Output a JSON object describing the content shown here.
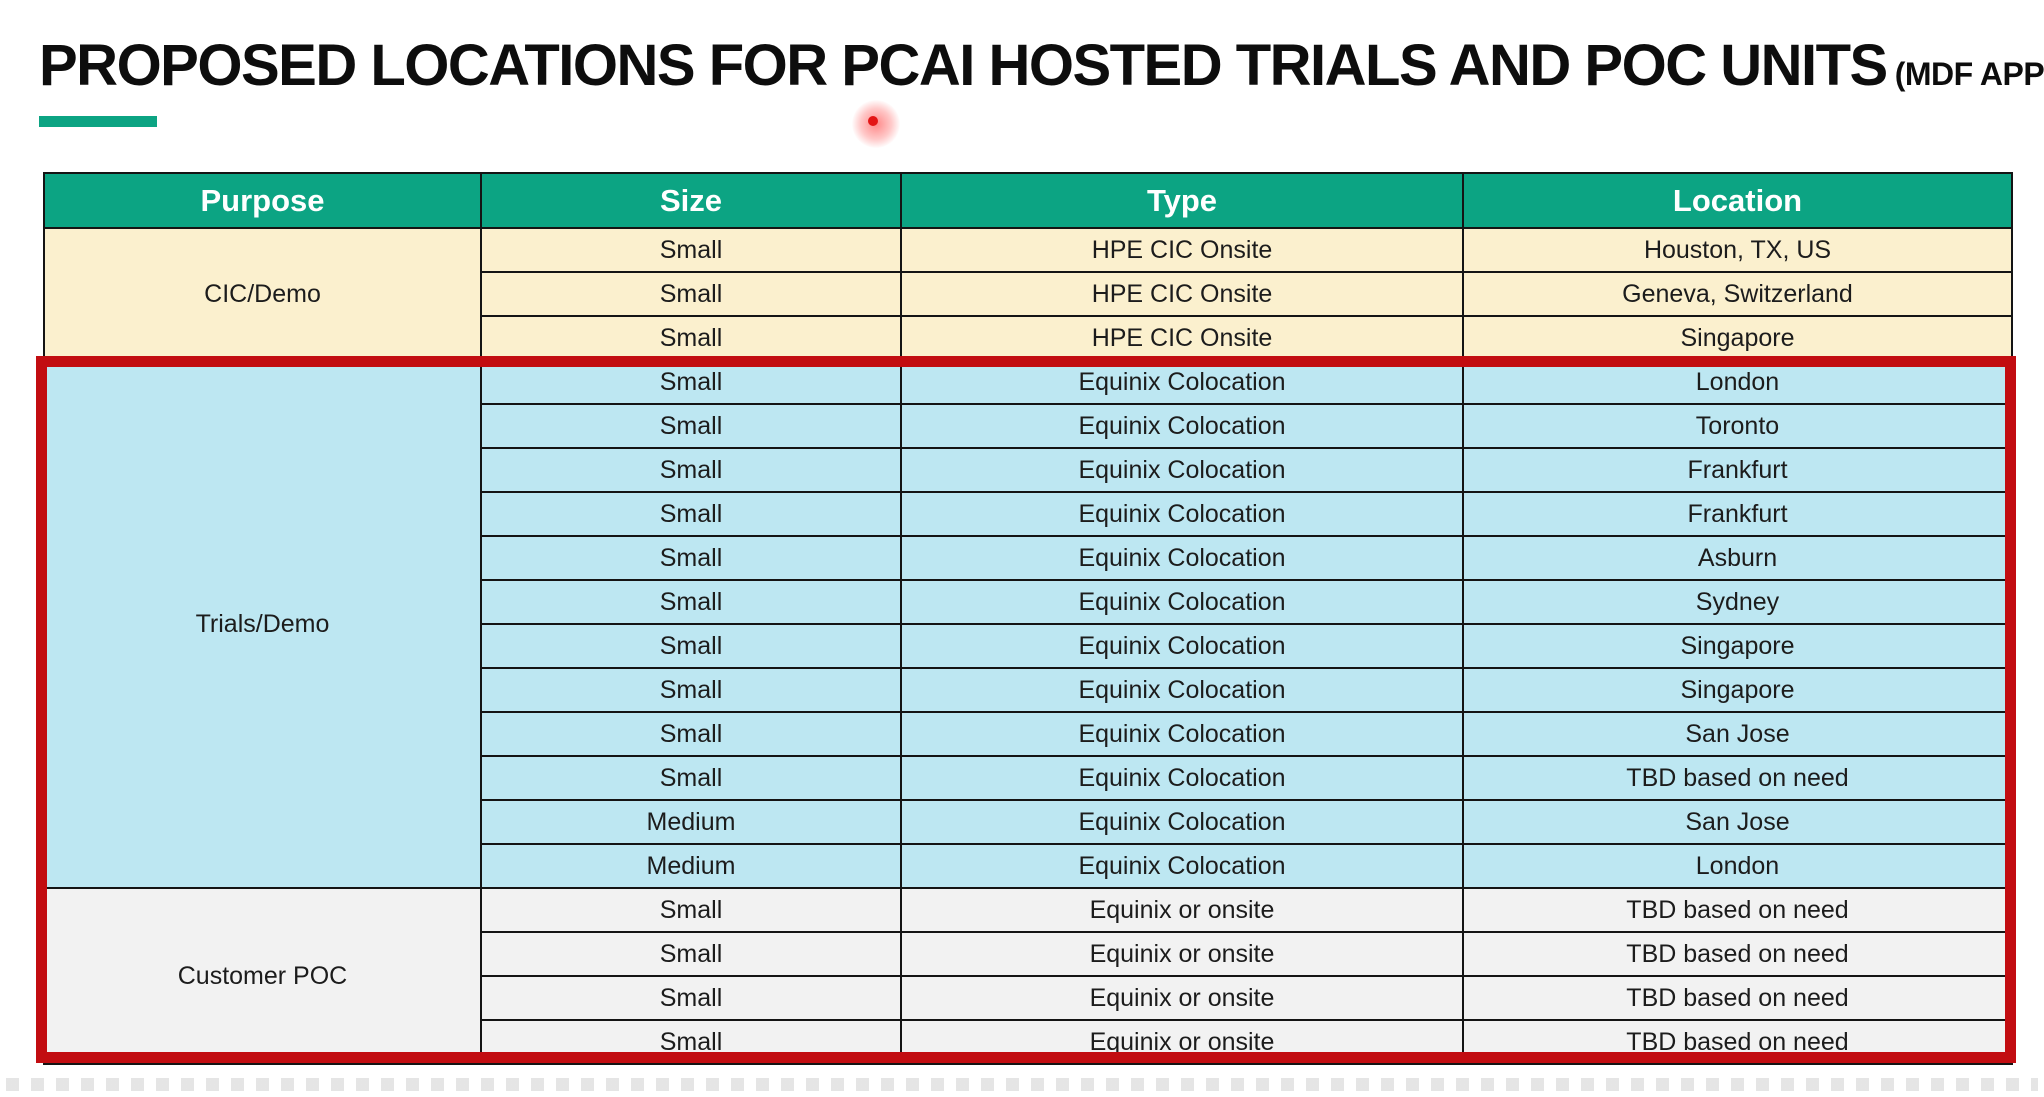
{
  "page": {
    "title": "PROPOSED LOCATIONS FOR PCAI HOSTED TRIALS AND POC UNITS",
    "title_suffix": "(MDF APPROVED)"
  },
  "colors": {
    "header_green": "#0CA483",
    "underline_green": "#0CA483",
    "cic_row_fill": "#FBF0CE",
    "trials_row_fill": "#BDE7F2",
    "poc_row_fill": "#F2F2F2",
    "highlight_box_red": "#C20D11",
    "laser_dot_red": "#E31515",
    "grid_line": "#141414"
  },
  "annotations": {
    "highlight_box": "red rectangle outlining Trials/Demo and Customer POC sections",
    "laser_dot": "red laser-pointer dot below title near PCAI"
  },
  "table": {
    "headers": [
      "Purpose",
      "Size",
      "Type",
      "Location"
    ],
    "groups": [
      {
        "purpose": "CIC/Demo",
        "style": "cream",
        "rows": [
          {
            "size": "Small",
            "type": "HPE CIC Onsite",
            "location": "Houston, TX, US"
          },
          {
            "size": "Small",
            "type": "HPE CIC Onsite",
            "location": "Geneva, Switzerland"
          },
          {
            "size": "Small",
            "type": "HPE CIC Onsite",
            "location": "Singapore"
          }
        ]
      },
      {
        "purpose": "Trials/Demo",
        "style": "blue",
        "rows": [
          {
            "size": "Small",
            "type": "Equinix Colocation",
            "location": "London"
          },
          {
            "size": "Small",
            "type": "Equinix Colocation",
            "location": "Toronto"
          },
          {
            "size": "Small",
            "type": "Equinix Colocation",
            "location": "Frankfurt"
          },
          {
            "size": "Small",
            "type": "Equinix Colocation",
            "location": "Frankfurt"
          },
          {
            "size": "Small",
            "type": "Equinix Colocation",
            "location": "Asburn"
          },
          {
            "size": "Small",
            "type": "Equinix Colocation",
            "location": "Sydney"
          },
          {
            "size": "Small",
            "type": "Equinix Colocation",
            "location": "Singapore"
          },
          {
            "size": "Small",
            "type": "Equinix Colocation",
            "location": "Singapore"
          },
          {
            "size": "Small",
            "type": "Equinix Colocation",
            "location": "San Jose"
          },
          {
            "size": "Small",
            "type": "Equinix Colocation",
            "location": "TBD based on need"
          },
          {
            "size": "Medium",
            "type": "Equinix Colocation",
            "location": "San Jose"
          },
          {
            "size": "Medium",
            "type": "Equinix Colocation",
            "location": "London"
          }
        ]
      },
      {
        "purpose": "Customer POC",
        "style": "gray",
        "rows": [
          {
            "size": "Small",
            "type": "Equinix or onsite",
            "location": "TBD based on need"
          },
          {
            "size": "Small",
            "type": "Equinix or onsite",
            "location": "TBD based on need"
          },
          {
            "size": "Small",
            "type": "Equinix or onsite",
            "location": "TBD based on need"
          },
          {
            "size": "Small",
            "type": "Equinix or onsite",
            "location": "TBD based on need"
          }
        ]
      }
    ]
  }
}
